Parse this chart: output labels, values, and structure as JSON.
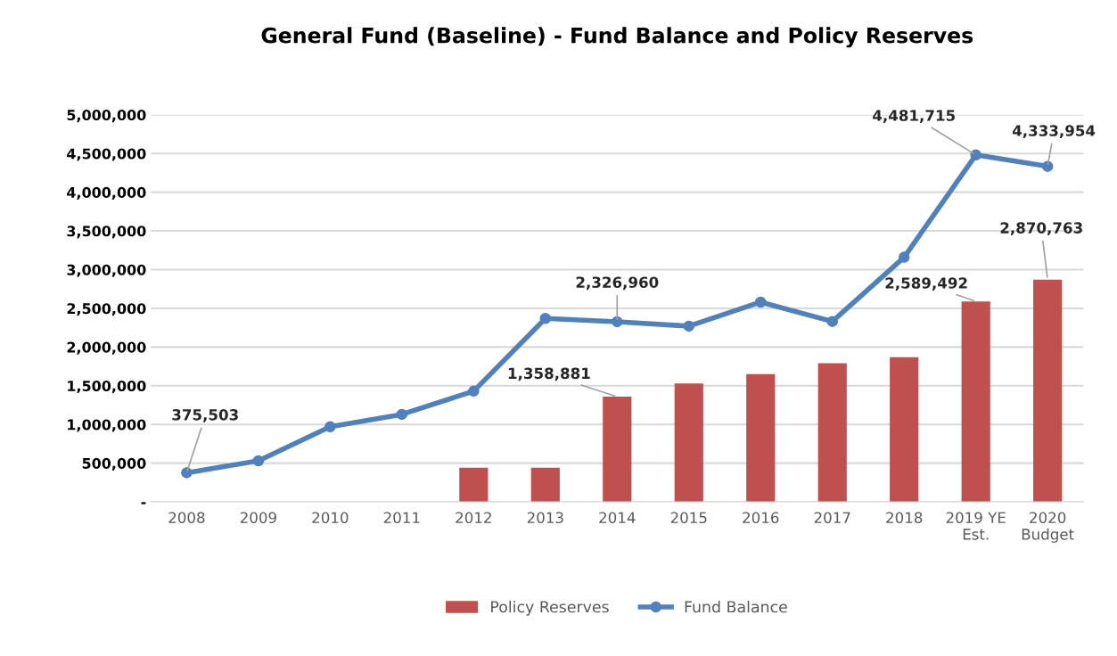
{
  "chart_data": {
    "type": "bar",
    "title": "General Fund (Baseline) - Fund Balance and Policy Reserves",
    "categories": [
      "2008",
      "2009",
      "2010",
      "2011",
      "2012",
      "2013",
      "2014",
      "2015",
      "2016",
      "2017",
      "2018",
      "2019 YE\nEst.",
      "2020\nBudget"
    ],
    "series": [
      {
        "name": "Policy Reserves",
        "color": "#c0504d",
        "values": [
          null,
          null,
          null,
          null,
          440000,
          440000,
          1358881,
          1530000,
          1650000,
          1790000,
          1870000,
          2589492,
          2870763
        ],
        "value_labels": [
          null,
          null,
          null,
          null,
          null,
          null,
          "1,358,881",
          null,
          null,
          null,
          null,
          "2,589,492",
          "2,870,763"
        ]
      },
      {
        "name": "Fund Balance",
        "type": "line",
        "color": "#4f81bd",
        "marker": "circle",
        "values": [
          375503,
          530000,
          970000,
          1130000,
          1430000,
          2370000,
          2326960,
          2270000,
          2580000,
          2330000,
          3160000,
          4481715,
          4333954
        ],
        "value_labels": [
          "375,503",
          null,
          null,
          null,
          null,
          null,
          "2,326,960",
          null,
          null,
          null,
          null,
          "4,481,715",
          "4,333,954"
        ]
      }
    ],
    "ylim": [
      0,
      5000000
    ],
    "yticks": [
      {
        "value": 0,
        "label": "-"
      },
      {
        "value": 500000,
        "label": "500,000"
      },
      {
        "value": 1000000,
        "label": "1,000,000"
      },
      {
        "value": 1500000,
        "label": "1,500,000"
      },
      {
        "value": 2000000,
        "label": "2,000,000"
      },
      {
        "value": 2500000,
        "label": "2,500,000"
      },
      {
        "value": 3000000,
        "label": "3,000,000"
      },
      {
        "value": 3500000,
        "label": "3,500,000"
      },
      {
        "value": 4000000,
        "label": "4,000,000"
      },
      {
        "value": 4500000,
        "label": "4,500,000"
      },
      {
        "value": 5000000,
        "label": "5,000,000"
      }
    ],
    "grid": "y",
    "legend": "bottom"
  }
}
